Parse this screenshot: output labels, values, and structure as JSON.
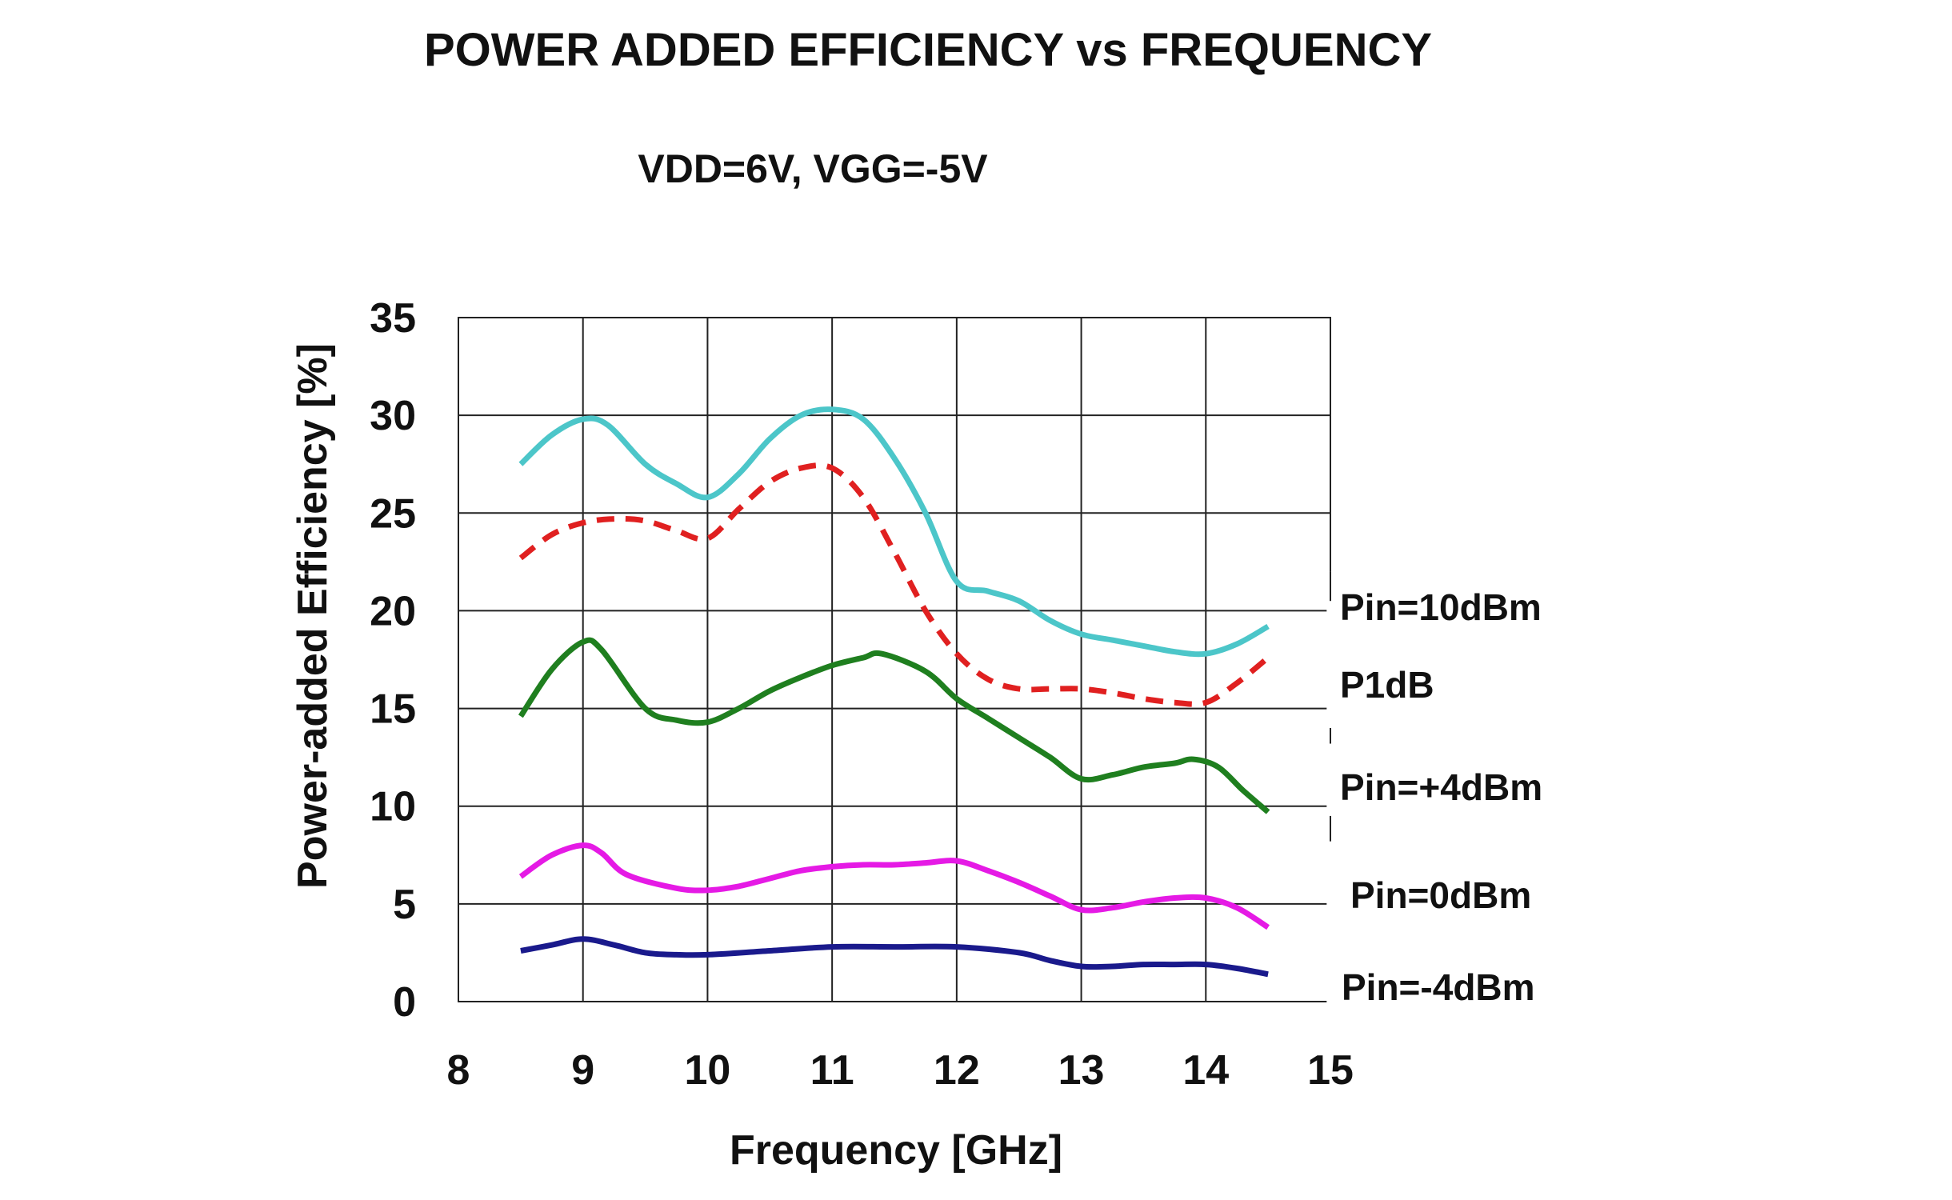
{
  "chart_data": {
    "type": "line",
    "title": "POWER ADDED EFFICIENCY vs FREQUENCY",
    "subtitle": "VDD=6V, VGG=-5V",
    "xlabel": "Frequency [GHz]",
    "ylabel": "Power-added Efficiency [%]",
    "xlim": [
      8,
      15
    ],
    "ylim": [
      0,
      35
    ],
    "x_ticks": [
      "8",
      "9",
      "10",
      "11",
      "12",
      "13",
      "14",
      "15"
    ],
    "y_ticks": [
      "0",
      "5",
      "10",
      "15",
      "20",
      "25",
      "30",
      "35"
    ],
    "grid": true,
    "legend_placement": "right, labels next to curve ends",
    "series": [
      {
        "name": "Pin=10dBm",
        "color": "#4CC6C9",
        "dashed": false,
        "x": [
          8.5,
          8.75,
          9.0,
          9.2,
          9.5,
          9.75,
          10.0,
          10.25,
          10.5,
          10.75,
          11.0,
          11.25,
          11.5,
          11.75,
          12.0,
          12.25,
          12.5,
          12.75,
          13.0,
          13.25,
          13.5,
          13.75,
          14.0,
          14.25,
          14.5
        ],
        "y": [
          27.5,
          29.0,
          29.8,
          29.5,
          27.5,
          26.5,
          25.8,
          27.0,
          28.8,
          30.0,
          30.3,
          29.8,
          27.8,
          25.0,
          21.5,
          21.0,
          20.5,
          19.5,
          18.8,
          18.5,
          18.2,
          17.9,
          17.8,
          18.3,
          19.2
        ]
      },
      {
        "name": "P1dB",
        "color": "#E02020",
        "dashed": true,
        "x": [
          8.5,
          8.75,
          9.0,
          9.25,
          9.5,
          9.75,
          10.0,
          10.25,
          10.5,
          10.75,
          11.0,
          11.25,
          11.5,
          11.75,
          12.0,
          12.25,
          12.5,
          12.75,
          13.0,
          13.25,
          13.5,
          13.75,
          14.0,
          14.25,
          14.5
        ],
        "y": [
          22.7,
          23.9,
          24.5,
          24.7,
          24.6,
          24.1,
          23.7,
          25.2,
          26.6,
          27.3,
          27.3,
          25.8,
          23.0,
          20.0,
          17.8,
          16.5,
          16.0,
          16.0,
          16.0,
          15.8,
          15.5,
          15.3,
          15.3,
          16.3,
          17.6
        ]
      },
      {
        "name": "Pin=+4dBm",
        "color": "#1F7F1F",
        "dashed": false,
        "x": [
          8.5,
          8.75,
          9.0,
          9.15,
          9.5,
          9.75,
          10.0,
          10.25,
          10.5,
          10.75,
          11.0,
          11.25,
          11.4,
          11.75,
          12.0,
          12.25,
          12.5,
          12.75,
          13.0,
          13.25,
          13.5,
          13.75,
          13.9,
          14.1,
          14.3,
          14.5
        ],
        "y": [
          14.6,
          17.0,
          18.4,
          18.0,
          15.0,
          14.4,
          14.3,
          15.0,
          15.9,
          16.6,
          17.2,
          17.6,
          17.8,
          16.9,
          15.5,
          14.5,
          13.5,
          12.5,
          11.4,
          11.6,
          12.0,
          12.2,
          12.4,
          12.0,
          10.8,
          9.7
        ]
      },
      {
        "name": "Pin=0dBm",
        "color": "#E51AE5",
        "dashed": false,
        "x": [
          8.5,
          8.75,
          9.0,
          9.15,
          9.35,
          9.75,
          10.0,
          10.25,
          10.5,
          10.75,
          11.0,
          11.25,
          11.5,
          11.75,
          12.0,
          12.25,
          12.5,
          12.75,
          13.0,
          13.25,
          13.5,
          13.75,
          14.0,
          14.25,
          14.5
        ],
        "y": [
          6.4,
          7.5,
          8.0,
          7.6,
          6.5,
          5.8,
          5.7,
          5.9,
          6.3,
          6.7,
          6.9,
          7.0,
          7.0,
          7.1,
          7.2,
          6.7,
          6.1,
          5.4,
          4.7,
          4.8,
          5.1,
          5.3,
          5.3,
          4.8,
          3.8
        ]
      },
      {
        "name": "Pin=-4dBm",
        "color": "#1A1A8C",
        "dashed": false,
        "x": [
          8.5,
          8.75,
          9.0,
          9.25,
          9.5,
          9.75,
          10.0,
          10.5,
          11.0,
          11.5,
          12.0,
          12.5,
          12.75,
          13.0,
          13.25,
          13.5,
          13.75,
          14.0,
          14.25,
          14.5
        ],
        "y": [
          2.6,
          2.9,
          3.2,
          2.9,
          2.5,
          2.4,
          2.4,
          2.6,
          2.8,
          2.8,
          2.8,
          2.5,
          2.1,
          1.8,
          1.8,
          1.9,
          1.9,
          1.9,
          1.7,
          1.4
        ]
      }
    ]
  }
}
